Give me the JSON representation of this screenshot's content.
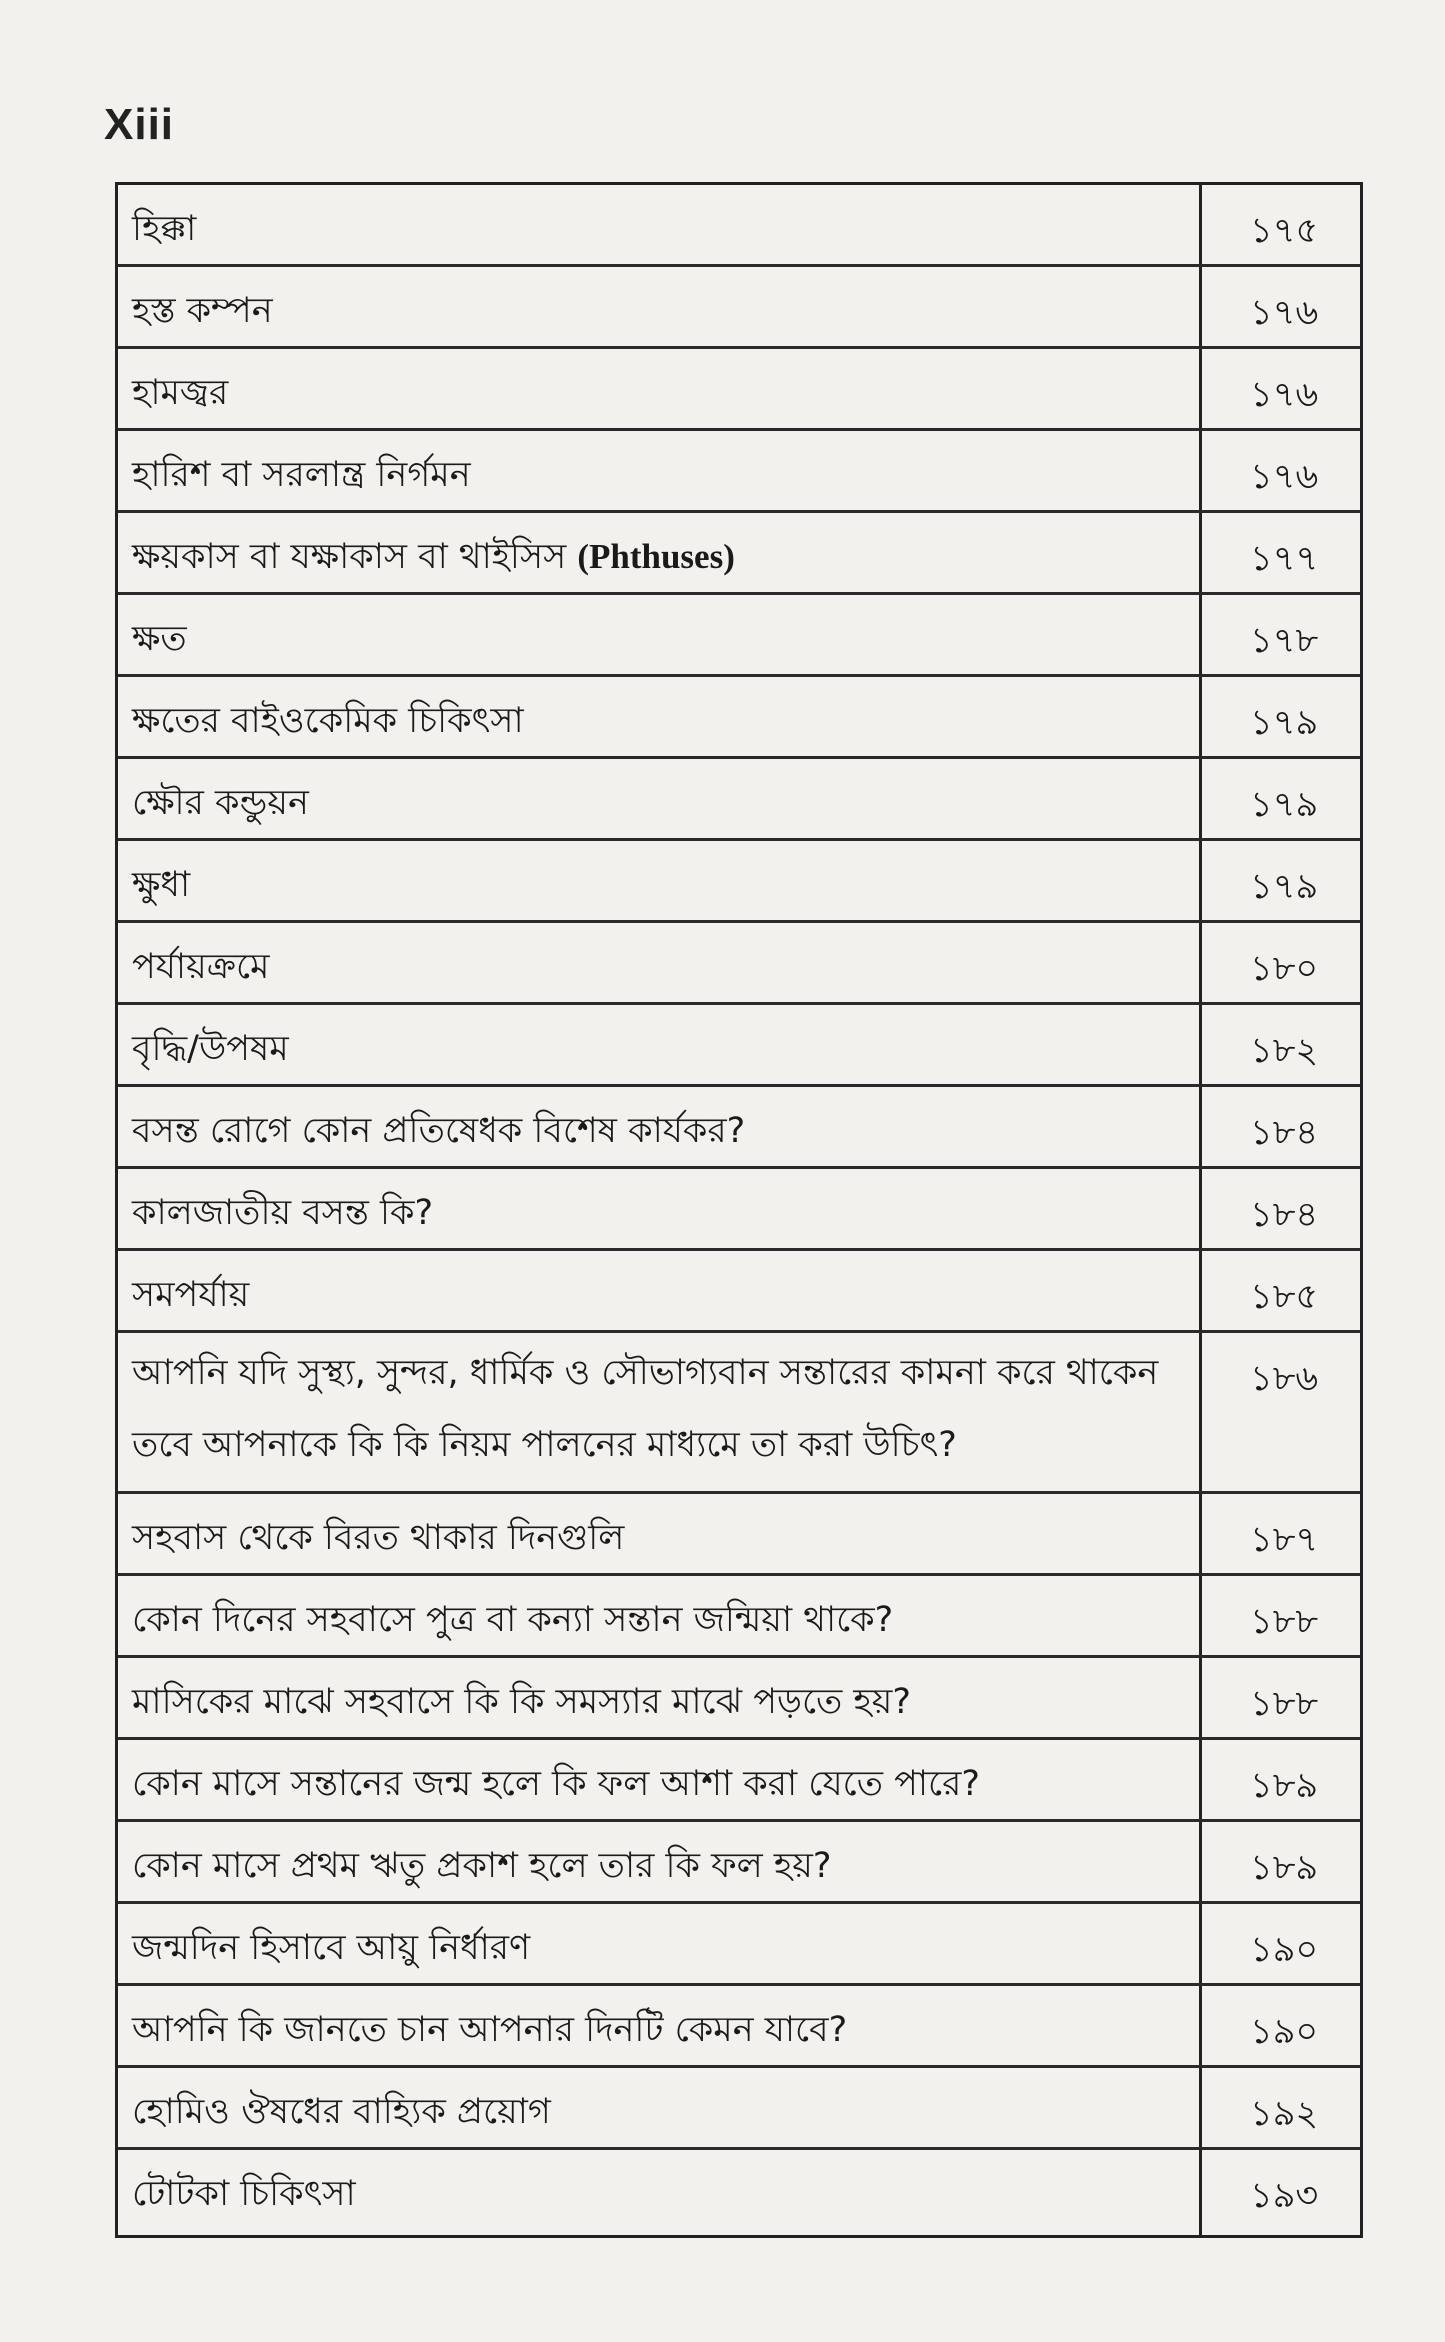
{
  "page_number": "Xiii",
  "toc": [
    {
      "title": "হিক্কা",
      "page": "১৭৫"
    },
    {
      "title": "হস্ত কম্পন",
      "page": "১৭৬"
    },
    {
      "title": "হামজ্বর",
      "page": "১৭৬"
    },
    {
      "title": "হারিশ বা সরলান্ত্র নির্গমন",
      "page": "১৭৬"
    },
    {
      "title": "ক্ষয়কাস বা যক্ষাকাস বা থাইসিস (Phthuses)",
      "page": "১৭৭"
    },
    {
      "title": "ক্ষত",
      "page": "১৭৮"
    },
    {
      "title": "ক্ষতের বাইওকেমিক চিকিৎসা",
      "page": "১৭৯"
    },
    {
      "title": "ক্ষৌর কন্ডুয়ন",
      "page": "১৭৯"
    },
    {
      "title": "ক্ষুধা",
      "page": "১৭৯"
    },
    {
      "title": "পর্যায়ক্রমে",
      "page": "১৮০"
    },
    {
      "title": "বৃদ্ধি/উপষম",
      "page": "১৮২"
    },
    {
      "title": "বসন্ত রোগে কোন প্রতিষেধক বিশেষ কার্যকর?",
      "page": "১৮৪"
    },
    {
      "title": "কালজাতীয় বসন্ত কি?",
      "page": "১৮৪"
    },
    {
      "title": "সমপর্যায়",
      "page": "১৮৫"
    },
    {
      "title": "আপনি যদি সুস্থ্য, সুন্দর, ধার্মিক ও সৌভাগ্যবান সন্তারের কামনা করে থাকেন তবে আপনাকে কি কি নিয়ম পালনের মাধ্যমে তা করা উচিৎ?",
      "page": "১৮৬"
    },
    {
      "title": "সহবাস থেকে বিরত থাকার দিনগুলি",
      "page": "১৮৭"
    },
    {
      "title": "কোন দিনের সহবাসে পুত্র বা কন্যা সন্তান জন্মিয়া থাকে?",
      "page": "১৮৮"
    },
    {
      "title": "মাসিকের মাঝে সহবাসে কি কি সমস্যার মাঝে পড়তে হয়?",
      "page": "১৮৮"
    },
    {
      "title": "কোন মাসে সন্তানের জন্ম হলে কি ফল আশা করা যেতে পারে?",
      "page": "১৮৯"
    },
    {
      "title": "কোন মাসে প্রথম ঋতু প্রকাশ হলে তার কি ফল হয়?",
      "page": "১৮৯"
    },
    {
      "title": "জন্মদিন হিসাবে আয়ু নির্ধারণ",
      "page": "১৯০"
    },
    {
      "title": "আপনি কি জানতে চান আপনার দিনটি কেমন যাবে?",
      "page": "১৯০"
    },
    {
      "title": "হোমিও ঔষধের বাহ্যিক প্রয়োগ",
      "page": "১৯২"
    },
    {
      "title": "টোটকা চিকিৎসা",
      "page": "১৯৩"
    }
  ]
}
